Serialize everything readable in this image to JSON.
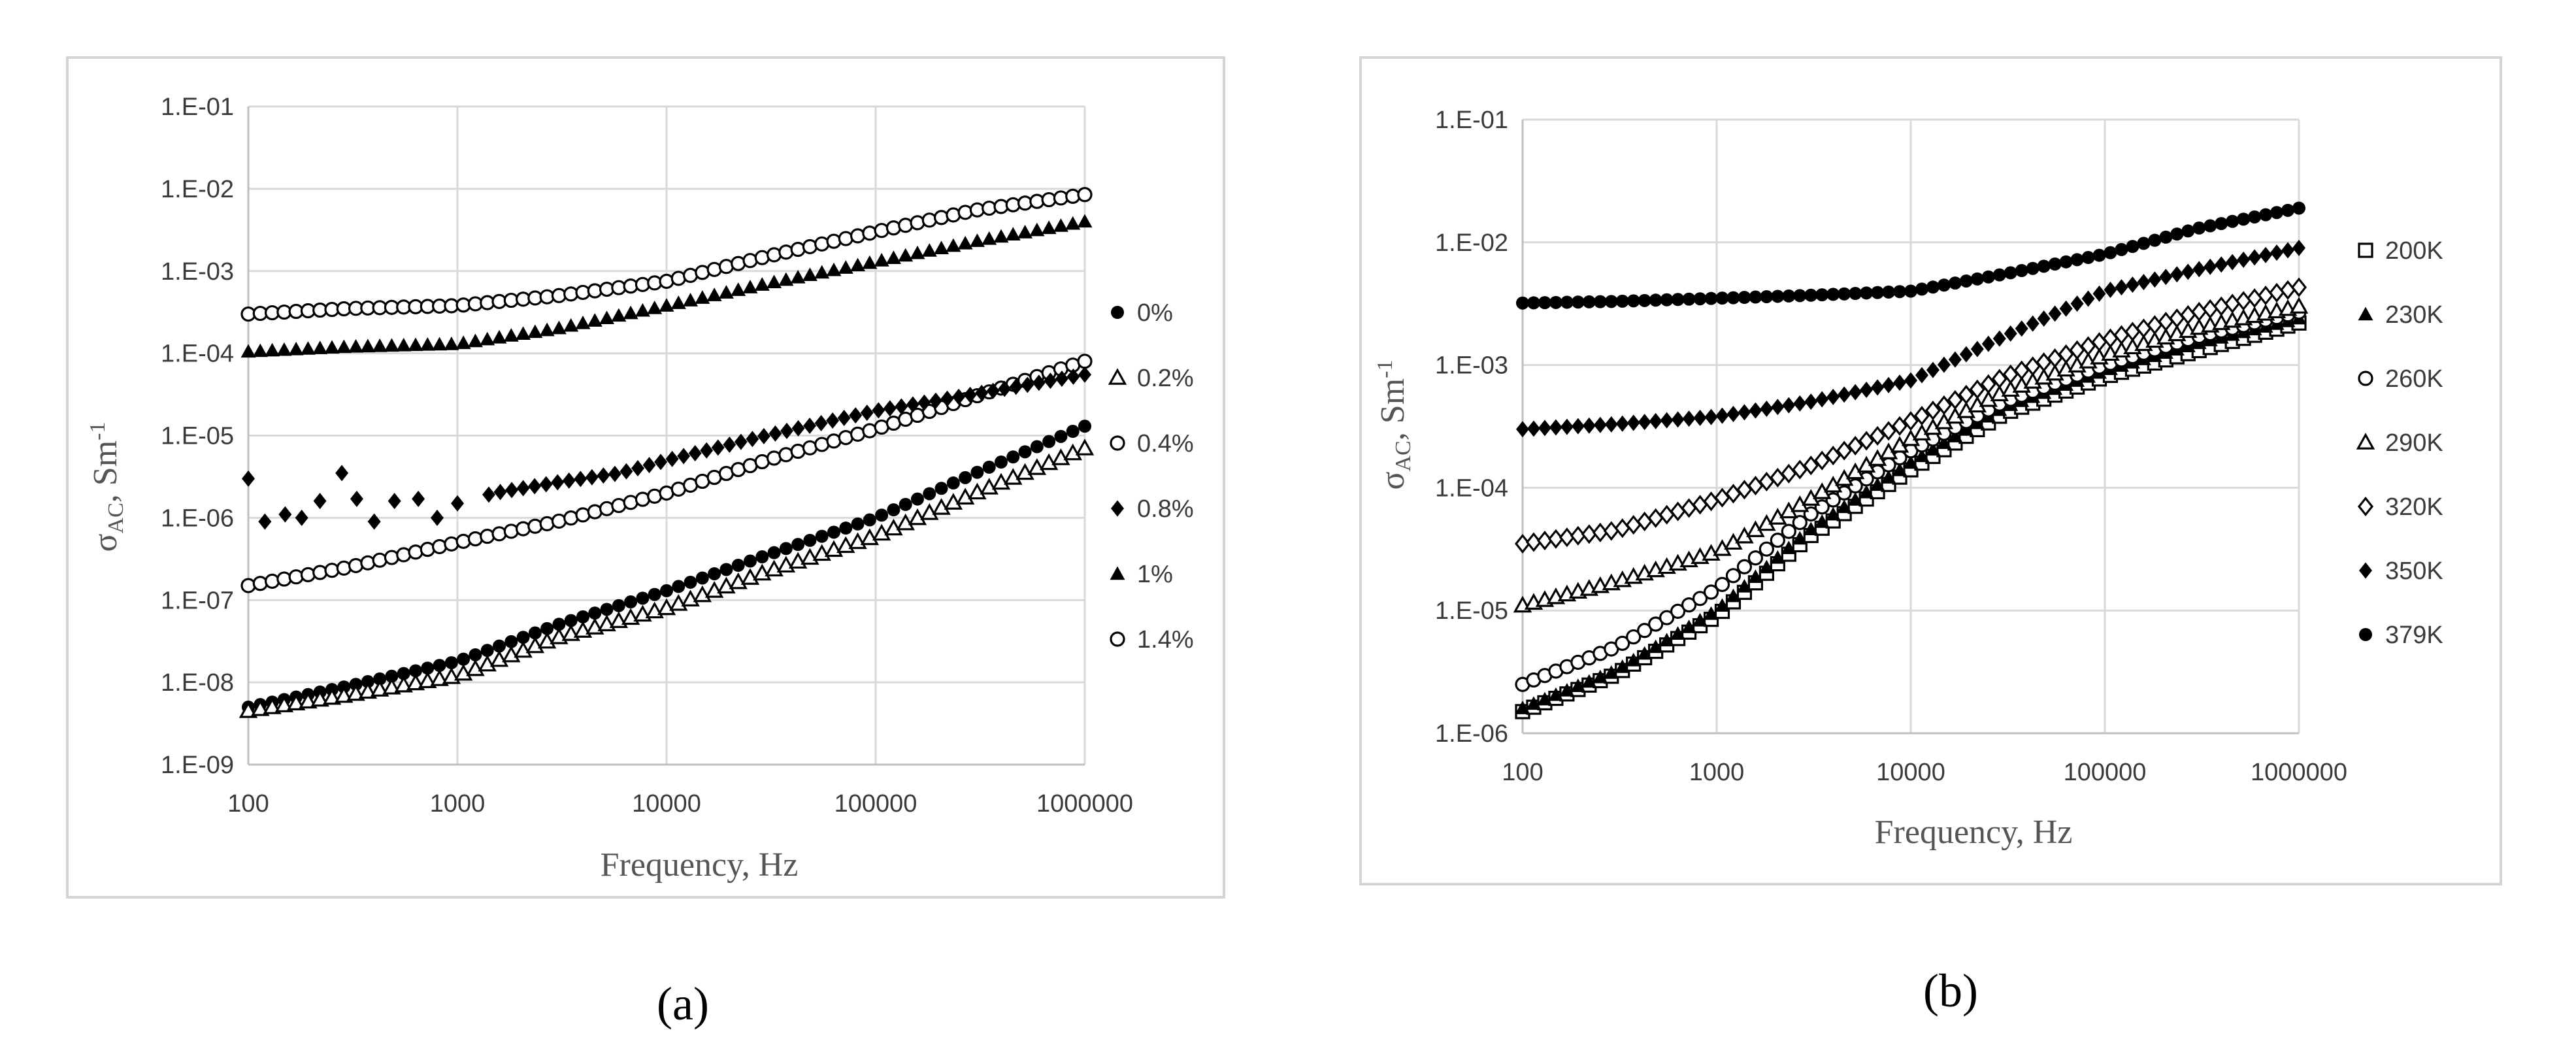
{
  "figure": {
    "captions": [
      "(a)",
      "(b)"
    ]
  },
  "chart_data": [
    {
      "type": "scatter",
      "panel": "(a)",
      "xlabel": "Frequency, Hz",
      "ylabel": "σAC, Sm-1",
      "ylabel_main": "σ",
      "ylabel_sub": "AC",
      "ylabel_unit": ", Sm",
      "ylabel_sup": "-1",
      "x_scale": "log",
      "y_scale": "log",
      "xlim": [
        100,
        1000000
      ],
      "ylim": [
        1e-09,
        0.1
      ],
      "x_ticks": [
        "100",
        "1000",
        "10000",
        "100000",
        "1000000"
      ],
      "y_ticks": [
        "1.E-01",
        "1.E-02",
        "1.E-03",
        "1.E-04",
        "1.E-05",
        "1.E-06",
        "1.E-07",
        "1.E-08",
        "1.E-09"
      ],
      "grid": true,
      "legend_position": "right",
      "colors": {
        "marker": "#000000",
        "grid": "#d9d9d9"
      },
      "series": [
        {
          "name": "0%",
          "marker": "filled-circle",
          "x": [
            100,
            300,
            1000,
            3000,
            10000,
            30000,
            100000,
            300000,
            1000000
          ],
          "y": [
            5e-09,
            9e-09,
            1.8e-08,
            5e-08,
            1.3e-07,
            3.5e-07,
            1e-06,
            3.5e-06,
            1.3e-05
          ]
        },
        {
          "name": "0.2%",
          "marker": "open-triangle",
          "x": [
            100,
            300,
            1000,
            3000,
            10000,
            30000,
            100000,
            300000,
            1000000
          ],
          "y": [
            4.5e-09,
            7e-09,
            1.2e-08,
            3.5e-08,
            8e-08,
            2.2e-07,
            6e-07,
            2e-06,
            7e-06
          ]
        },
        {
          "name": "0.4%",
          "marker": "open-circle",
          "x": [
            100,
            300,
            1000,
            3000,
            10000,
            30000,
            100000,
            300000,
            1000000
          ],
          "y": [
            1.5e-07,
            2.5e-07,
            5e-07,
            9e-07,
            2e-06,
            5e-06,
            1.2e-05,
            3e-05,
            8e-05
          ]
        },
        {
          "name": "0.8%",
          "marker": "filled-diamond",
          "x": [
            100,
            120,
            150,
            180,
            220,
            280,
            330,
            400,
            500,
            650,
            800,
            1000,
            1500,
            3000,
            6000,
            10000,
            30000,
            100000,
            300000,
            1000000
          ],
          "y": [
            3e-06,
            9e-07,
            1.1e-06,
            1e-06,
            1.6e-06,
            3.5e-06,
            1.7e-06,
            9e-07,
            1.6e-06,
            1.7e-06,
            1e-06,
            1.5e-06,
            2e-06,
            2.7e-06,
            3.5e-06,
            5e-06,
            1e-05,
            2e-05,
            3.2e-05,
            5.5e-05
          ]
        },
        {
          "name": "1%",
          "marker": "filled-triangle",
          "x": [
            100,
            300,
            1000,
            3000,
            10000,
            30000,
            100000,
            300000,
            1000000
          ],
          "y": [
            0.000105,
            0.00012,
            0.00013,
            0.0002,
            0.00038,
            0.0007,
            0.0013,
            0.0023,
            0.004
          ]
        },
        {
          "name": "1.4%",
          "marker": "open-circle",
          "x": [
            100,
            300,
            1000,
            3000,
            10000,
            30000,
            100000,
            300000,
            1000000
          ],
          "y": [
            0.0003,
            0.00035,
            0.00038,
            0.0005,
            0.00075,
            0.0015,
            0.003,
            0.0055,
            0.0085
          ]
        }
      ]
    },
    {
      "type": "scatter",
      "panel": "(b)",
      "xlabel": "Frequency, Hz",
      "ylabel": "σAC, Sm-1",
      "ylabel_main": "σ",
      "ylabel_sub": "AC",
      "ylabel_unit": ", Sm",
      "ylabel_sup": "-1",
      "x_scale": "log",
      "y_scale": "log",
      "xlim": [
        100,
        1000000
      ],
      "ylim": [
        1e-06,
        0.1
      ],
      "x_ticks": [
        "100",
        "1000",
        "10000",
        "100000",
        "1000000"
      ],
      "y_ticks": [
        "1.E-01",
        "1.E-02",
        "1.E-03",
        "1.E-04",
        "1.E-05",
        "1.E-06"
      ],
      "grid": true,
      "legend_position": "right",
      "colors": {
        "marker": "#000000",
        "grid": "#d9d9d9"
      },
      "series": [
        {
          "name": "200K",
          "marker": "open-square",
          "x": [
            100,
            300,
            1000,
            3000,
            10000,
            30000,
            100000,
            300000,
            1000000
          ],
          "y": [
            1.5e-06,
            3e-06,
            9e-06,
            4e-05,
            0.00014,
            0.0004,
            0.0008,
            0.0013,
            0.0022
          ]
        },
        {
          "name": "230K",
          "marker": "filled-triangle",
          "x": [
            100,
            300,
            1000,
            3000,
            10000,
            30000,
            100000,
            300000,
            1000000
          ],
          "y": [
            1.6e-06,
            3.2e-06,
            1e-05,
            4.5e-05,
            0.00016,
            0.00045,
            0.0009,
            0.0015,
            0.0024
          ]
        },
        {
          "name": "260K",
          "marker": "open-circle",
          "x": [
            100,
            300,
            1000,
            3000,
            10000,
            30000,
            100000,
            300000,
            1000000
          ],
          "y": [
            2.5e-06,
            5e-06,
            1.5e-05,
            6e-05,
            0.0002,
            0.0005,
            0.001,
            0.0017,
            0.0027
          ]
        },
        {
          "name": "290K",
          "marker": "open-triangle",
          "x": [
            100,
            300,
            1000,
            3000,
            10000,
            30000,
            100000,
            300000,
            1000000
          ],
          "y": [
            1.1e-05,
            1.7e-05,
            3e-05,
            8e-05,
            0.00025,
            0.0006,
            0.0012,
            0.002,
            0.003
          ]
        },
        {
          "name": "320K",
          "marker": "open-diamond",
          "x": [
            100,
            300,
            1000,
            3000,
            10000,
            30000,
            100000,
            300000,
            1000000
          ],
          "y": [
            3.5e-05,
            4.5e-05,
            8e-05,
            0.00015,
            0.00035,
            0.0008,
            0.0016,
            0.0027,
            0.0043
          ]
        },
        {
          "name": "350K",
          "marker": "filled-diamond",
          "x": [
            100,
            300,
            1000,
            3000,
            10000,
            30000,
            100000,
            300000,
            1000000
          ],
          "y": [
            0.0003,
            0.00033,
            0.00038,
            0.0005,
            0.00075,
            0.0017,
            0.004,
            0.006,
            0.009
          ]
        },
        {
          "name": "379K",
          "marker": "filled-circle",
          "x": [
            100,
            300,
            1000,
            3000,
            10000,
            30000,
            100000,
            300000,
            1000000
          ],
          "y": [
            0.0032,
            0.0033,
            0.0035,
            0.0037,
            0.004,
            0.0055,
            0.008,
            0.013,
            0.019
          ]
        }
      ]
    }
  ]
}
